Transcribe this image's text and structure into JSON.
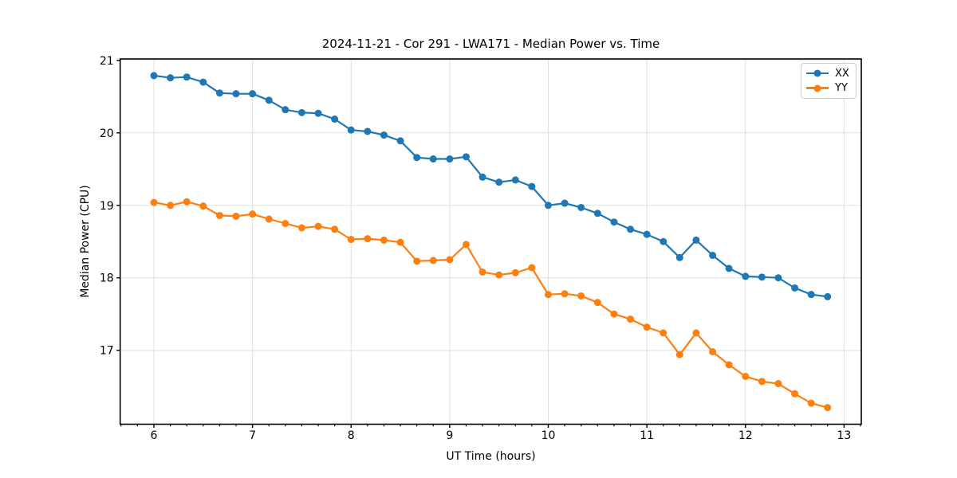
{
  "chart_data": {
    "type": "line",
    "title": "2024-11-21 - Cor 291 - LWA171 - Median Power vs. Time",
    "xlabel": "UT Time (hours)",
    "ylabel": "Median Power (CPU)",
    "xlim": [
      5.658,
      13.175
    ],
    "ylim": [
      15.98,
      21.02
    ],
    "x_major_ticks": [
      6,
      7,
      8,
      9,
      10,
      11,
      12,
      13
    ],
    "x_minor_step_hours": 0.1667,
    "y_major_ticks": [
      17,
      18,
      19,
      20,
      21
    ],
    "grid": true,
    "grid_color": "#e0e0e0",
    "spine_color": "#000000",
    "legend": {
      "position": "upper right",
      "entries": [
        "XX",
        "YY"
      ]
    },
    "x": [
      6.0,
      6.167,
      6.333,
      6.5,
      6.667,
      6.833,
      7.0,
      7.167,
      7.333,
      7.5,
      7.667,
      7.833,
      8.0,
      8.167,
      8.333,
      8.5,
      8.667,
      8.833,
      9.0,
      9.167,
      9.333,
      9.5,
      9.667,
      9.833,
      10.0,
      10.167,
      10.333,
      10.5,
      10.667,
      10.833,
      11.0,
      11.167,
      11.333,
      11.5,
      11.667,
      11.833,
      12.0,
      12.167,
      12.333,
      12.5,
      12.667,
      12.833
    ],
    "series": [
      {
        "name": "XX",
        "color": "#1f77b4",
        "values": [
          20.79,
          20.76,
          20.77,
          20.7,
          20.55,
          20.54,
          20.54,
          20.45,
          20.32,
          20.28,
          20.27,
          20.19,
          20.04,
          20.02,
          19.97,
          19.89,
          19.66,
          19.64,
          19.64,
          19.67,
          19.39,
          19.32,
          19.35,
          19.26,
          19.0,
          19.03,
          18.97,
          18.89,
          18.77,
          18.67,
          18.6,
          18.5,
          18.28,
          18.52,
          18.31,
          18.13,
          18.02,
          18.01,
          18.0,
          17.86,
          17.77,
          17.74
        ]
      },
      {
        "name": "YY",
        "color": "#ff7f0e",
        "values": [
          19.04,
          19.0,
          19.05,
          18.99,
          18.86,
          18.85,
          18.88,
          18.81,
          18.75,
          18.69,
          18.71,
          18.67,
          18.53,
          18.54,
          18.52,
          18.49,
          18.23,
          18.24,
          18.25,
          18.46,
          18.08,
          18.04,
          18.07,
          18.14,
          17.77,
          17.78,
          17.75,
          17.66,
          17.5,
          17.43,
          17.32,
          17.24,
          16.94,
          17.24,
          16.98,
          16.8,
          16.64,
          16.57,
          16.54,
          16.4,
          16.27,
          16.21
        ]
      }
    ]
  }
}
